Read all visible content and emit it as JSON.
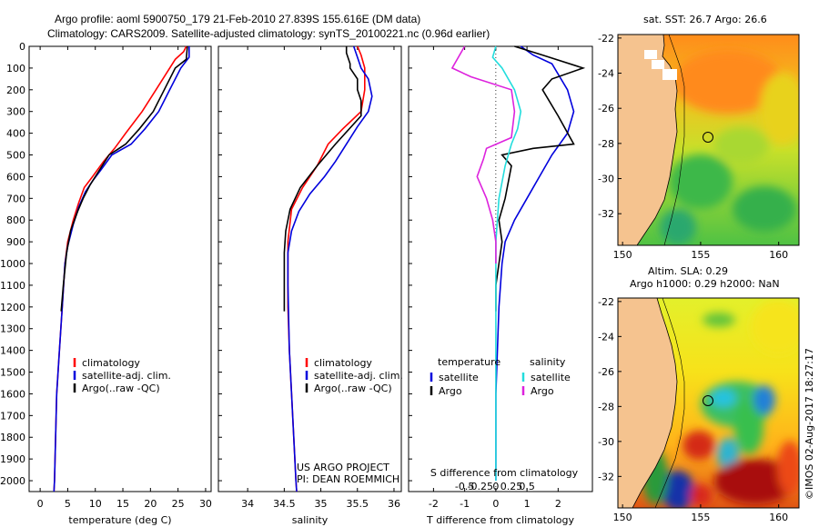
{
  "header": {
    "line1": "Argo profile: aoml 5900750_179 21-Feb-2010 27.839S 155.616E (DM data)",
    "line2": "Climatology: CARS2009. Satellite-adjusted climatology: synTS_20100221.nc (0.96d earlier)"
  },
  "footer": {
    "project": "US ARGO PROJECT",
    "pi": "PI: DEAN ROEMMICH",
    "timestamp": "©IMOS 02-Aug-2017 18:27:17"
  },
  "colors": {
    "climatology": "#ff0000",
    "satellite": "#0000dd",
    "argo": "#000000",
    "salinity_satellite": "#22dddd",
    "salinity_argo": "#dd22dd",
    "land": "#f5c38f"
  },
  "chart_data": [
    {
      "type": "line",
      "name": "temperature-profile",
      "xlabel": "temperature (deg C)",
      "ylabel": "",
      "xlim": [
        -2,
        31
      ],
      "ylim": [
        2050,
        0
      ],
      "xticks": [
        0,
        5,
        10,
        15,
        20,
        25,
        30
      ],
      "yticks": [
        0,
        100,
        200,
        300,
        400,
        500,
        600,
        700,
        800,
        900,
        1000,
        1100,
        1200,
        1300,
        1400,
        1500,
        1600,
        1700,
        1800,
        1900,
        2000
      ],
      "legend": [
        "climatology",
        "satellite-adj. clim.",
        "Argo(..raw -QC)"
      ],
      "series": [
        {
          "name": "climatology",
          "color": "#ff0000",
          "points": [
            [
              26.5,
              0
            ],
            [
              26,
              25
            ],
            [
              24.5,
              60
            ],
            [
              23,
              120
            ],
            [
              21,
              200
            ],
            [
              18.5,
              300
            ],
            [
              15.5,
              400
            ],
            [
              13.5,
              470
            ],
            [
              11.5,
              530
            ],
            [
              9.5,
              600
            ],
            [
              8,
              650
            ],
            [
              7,
              720
            ],
            [
              6,
              800
            ],
            [
              5,
              900
            ],
            [
              4.5,
              1000
            ],
            [
              4,
              1200
            ],
            [
              3.5,
              1400
            ],
            [
              3,
              1600
            ],
            [
              2.8,
              1800
            ],
            [
              2.6,
              2000
            ],
            [
              2.5,
              2050
            ]
          ]
        },
        {
          "name": "satellite-adj. clim.",
          "color": "#0000dd",
          "points": [
            [
              27,
              0
            ],
            [
              27,
              50
            ],
            [
              25.5,
              100
            ],
            [
              23.5,
              200
            ],
            [
              21.5,
              300
            ],
            [
              19,
              380
            ],
            [
              16.5,
              450
            ],
            [
              13,
              500
            ],
            [
              11,
              570
            ],
            [
              9.5,
              620
            ],
            [
              8.2,
              670
            ],
            [
              7,
              740
            ],
            [
              6,
              820
            ],
            [
              5,
              920
            ],
            [
              4.5,
              1000
            ],
            [
              4,
              1200
            ],
            [
              3.5,
              1400
            ],
            [
              3,
              1600
            ],
            [
              2.8,
              1800
            ],
            [
              2.6,
              2000
            ],
            [
              2.5,
              2050
            ]
          ]
        },
        {
          "name": "Argo(..raw -QC)",
          "color": "#000000",
          "points": [
            [
              26.7,
              0
            ],
            [
              26.5,
              60
            ],
            [
              24.5,
              100
            ],
            [
              22.5,
              200
            ],
            [
              20.5,
              300
            ],
            [
              18,
              380
            ],
            [
              15.5,
              450
            ],
            [
              12.5,
              500
            ],
            [
              10.5,
              580
            ],
            [
              9,
              640
            ],
            [
              7.8,
              700
            ],
            [
              6.8,
              760
            ],
            [
              5.5,
              850
            ],
            [
              4.8,
              950
            ],
            [
              4.2,
              1100
            ],
            [
              3.8,
              1220
            ]
          ]
        }
      ]
    },
    {
      "type": "line",
      "name": "salinity-profile",
      "xlabel": "salinity",
      "ylabel": "",
      "xlim": [
        33.6,
        36.1
      ],
      "ylim": [
        2050,
        0
      ],
      "xticks": [
        34,
        34.5,
        35,
        35.5,
        36
      ],
      "legend": [
        "climatology",
        "satellite-adj. clim.",
        "Argo(..raw -QC)"
      ],
      "series": [
        {
          "name": "climatology",
          "color": "#ff0000",
          "points": [
            [
              35.5,
              0
            ],
            [
              35.55,
              40
            ],
            [
              35.6,
              100
            ],
            [
              35.6,
              200
            ],
            [
              35.55,
              300
            ],
            [
              35.3,
              380
            ],
            [
              35.1,
              450
            ],
            [
              34.95,
              550
            ],
            [
              34.75,
              650
            ],
            [
              34.6,
              750
            ],
            [
              34.55,
              900
            ],
            [
              34.55,
              1000
            ],
            [
              34.55,
              1200
            ],
            [
              34.57,
              1400
            ],
            [
              34.6,
              1600
            ],
            [
              34.63,
              1800
            ],
            [
              34.66,
              2000
            ],
            [
              34.67,
              2050
            ]
          ]
        },
        {
          "name": "satellite-adj. clim.",
          "color": "#0000dd",
          "points": [
            [
              35.45,
              0
            ],
            [
              35.5,
              50
            ],
            [
              35.55,
              100
            ],
            [
              35.65,
              150
            ],
            [
              35.7,
              230
            ],
            [
              35.65,
              300
            ],
            [
              35.5,
              370
            ],
            [
              35.35,
              450
            ],
            [
              35.2,
              530
            ],
            [
              35.05,
              600
            ],
            [
              34.85,
              680
            ],
            [
              34.7,
              760
            ],
            [
              34.6,
              850
            ],
            [
              34.55,
              950
            ],
            [
              34.55,
              1100
            ],
            [
              34.57,
              1400
            ],
            [
              34.6,
              1600
            ],
            [
              34.63,
              1800
            ],
            [
              34.66,
              2000
            ],
            [
              34.67,
              2050
            ]
          ]
        },
        {
          "name": "Argo(..raw -QC)",
          "color": "#000000",
          "points": [
            [
              35.35,
              0
            ],
            [
              35.35,
              30
            ],
            [
              35.4,
              80
            ],
            [
              35.4,
              100
            ],
            [
              35.5,
              150
            ],
            [
              35.5,
              200
            ],
            [
              35.55,
              250
            ],
            [
              35.55,
              320
            ],
            [
              35.2,
              450
            ],
            [
              34.95,
              550
            ],
            [
              34.72,
              650
            ],
            [
              34.58,
              750
            ],
            [
              34.52,
              850
            ],
            [
              34.5,
              950
            ],
            [
              34.5,
              1100
            ],
            [
              34.5,
              1220
            ]
          ]
        }
      ]
    },
    {
      "type": "line",
      "name": "difference-profile",
      "xlabel": "T difference from climatology",
      "xlabel_top": "S difference from climatology",
      "xlim": [
        -2.8,
        3.1
      ],
      "ylim": [
        2050,
        0
      ],
      "xticks": [
        -2,
        -1,
        0,
        1,
        2
      ],
      "xticks_salinity": [
        -0.5,
        -0.25,
        0,
        0.25,
        0.5
      ],
      "xtick_labels_salinity": [
        "-0.5",
        "-0.25",
        "0",
        "0.25",
        "0.5"
      ],
      "legend_titles": [
        "temperature",
        "salinity"
      ],
      "legend": [
        "satellite",
        "Argo",
        "satellite",
        "Argo"
      ],
      "series": [
        {
          "name": "temperature satellite",
          "color": "#0000dd",
          "points": [
            [
              0.8,
              0
            ],
            [
              1.2,
              40
            ],
            [
              1.8,
              80
            ],
            [
              2.3,
              200
            ],
            [
              2.5,
              300
            ],
            [
              2.3,
              400
            ],
            [
              1.8,
              500
            ],
            [
              1.4,
              600
            ],
            [
              1.0,
              700
            ],
            [
              0.6,
              800
            ],
            [
              0.3,
              900
            ],
            [
              0.2,
              1000
            ],
            [
              0.1,
              1200
            ],
            [
              0.05,
              1400
            ],
            [
              0,
              1600
            ],
            [
              0,
              2000
            ]
          ]
        },
        {
          "name": "temperature Argo",
          "color": "#000000",
          "points": [
            [
              0.6,
              0
            ],
            [
              1.5,
              40
            ],
            [
              2.8,
              100
            ],
            [
              1.8,
              150
            ],
            [
              1.5,
              200
            ],
            [
              2,
              320
            ],
            [
              2.5,
              450
            ],
            [
              1.2,
              470
            ],
            [
              0.2,
              500
            ],
            [
              0.5,
              550
            ],
            [
              0.3,
              700
            ],
            [
              0.1,
              800
            ],
            [
              0.2,
              900
            ],
            [
              0.1,
              1000
            ],
            [
              0,
              1100
            ],
            [
              0,
              1220
            ]
          ]
        },
        {
          "name": "salinity satellite",
          "color": "#22dddd",
          "points": [
            [
              0,
              0
            ],
            [
              -0.1,
              50
            ],
            [
              0.2,
              100
            ],
            [
              0.6,
              200
            ],
            [
              0.8,
              300
            ],
            [
              0.7,
              380
            ],
            [
              0.5,
              450
            ],
            [
              0.3,
              550
            ],
            [
              0.1,
              700
            ],
            [
              0,
              900
            ],
            [
              0,
              1100
            ],
            [
              0,
              1400
            ],
            [
              0,
              1700
            ],
            [
              0,
              2000
            ]
          ]
        },
        {
          "name": "salinity Argo",
          "color": "#dd22dd",
          "points": [
            [
              -1,
              0
            ],
            [
              -1.4,
              100
            ],
            [
              -0.8,
              140
            ],
            [
              0.5,
              200
            ],
            [
              0.6,
              300
            ],
            [
              0.5,
              420
            ],
            [
              -0.3,
              470
            ],
            [
              -0.4,
              520
            ],
            [
              -0.6,
              600
            ],
            [
              -0.3,
              700
            ],
            [
              -0.1,
              800
            ],
            [
              0,
              900
            ],
            [
              0,
              1000
            ]
          ]
        }
      ]
    },
    {
      "type": "heatmap",
      "name": "sst-map",
      "title": "sat. SST: 26.7  Argo: 26.6",
      "xticks": [
        150,
        155,
        160
      ],
      "yticks": [
        -22,
        -24,
        -26,
        -28,
        -30,
        -32
      ]
    },
    {
      "type": "heatmap",
      "name": "sla-map",
      "title_line1": "Altim. SLA: 0.29",
      "title_line2": "Argo h1000: 0.29  h2000: NaN",
      "xticks": [
        150,
        155,
        160
      ],
      "yticks": [
        -22,
        -24,
        -26,
        -28,
        -30,
        -32
      ]
    }
  ]
}
